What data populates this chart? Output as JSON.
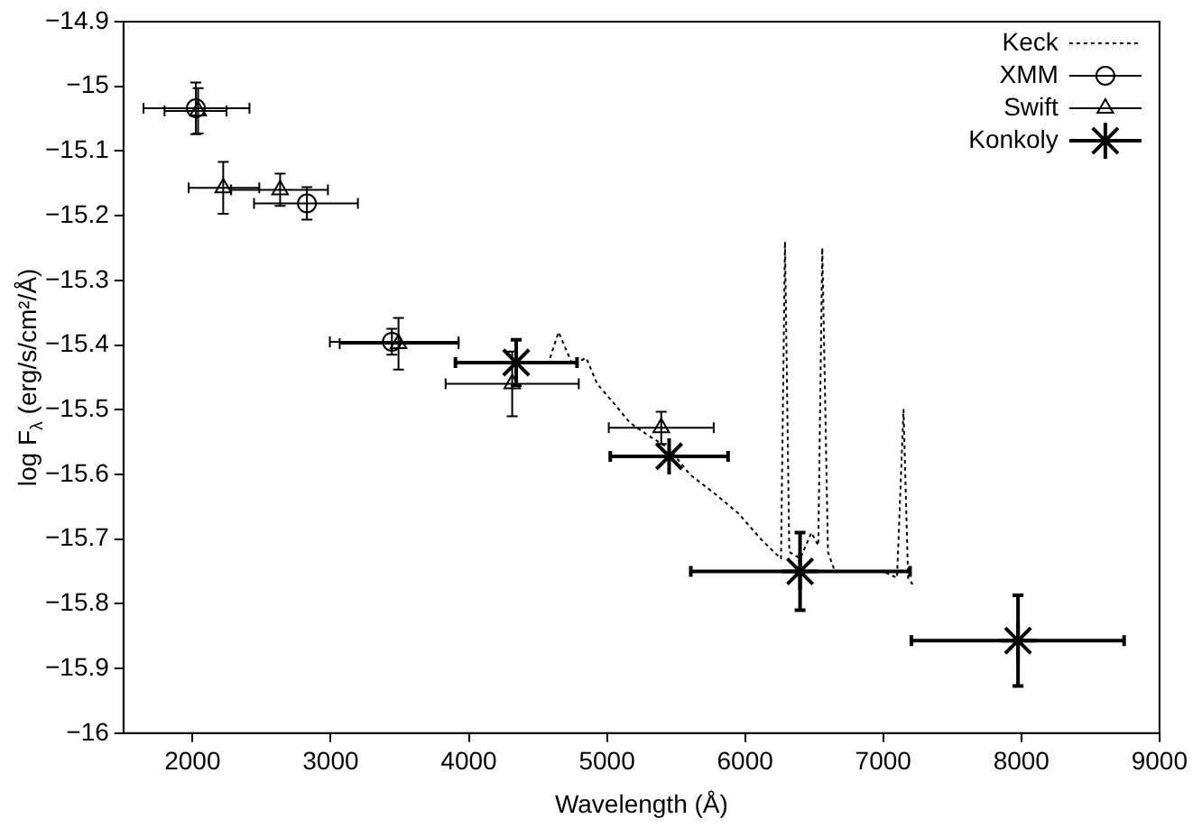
{
  "chart_data": {
    "type": "scatter",
    "xlabel": "Wavelength (Å)",
    "ylabel": "log F$_{λ}$ (erg/s/cm²/Å)",
    "xlim": [
      1500,
      9000
    ],
    "xticks": [
      2000,
      3000,
      4000,
      5000,
      6000,
      7000,
      8000,
      9000
    ],
    "ylim": [
      -16,
      -14.9
    ],
    "yticks": [
      {
        "value": -14.9,
        "label": "−14.9"
      },
      {
        "value": -15,
        "label": "−15"
      },
      {
        "value": -15.1,
        "label": "−15.1"
      },
      {
        "value": -15.2,
        "label": "−15.2"
      },
      {
        "value": -15.3,
        "label": "−15.3"
      },
      {
        "value": -15.4,
        "label": "−15.4"
      },
      {
        "value": -15.5,
        "label": "−15.5"
      },
      {
        "value": -15.6,
        "label": "−15.6"
      },
      {
        "value": -15.7,
        "label": "−15.7"
      },
      {
        "value": -15.8,
        "label": "−15.8"
      },
      {
        "value": -15.9,
        "label": "−15.9"
      },
      {
        "value": -16,
        "label": "−16"
      }
    ],
    "grid": false,
    "legend": "top right",
    "series": [
      {
        "name": "Keck",
        "type": "line",
        "color": "#000000",
        "line_style": "dotted",
        "marker": "none",
        "x": [
          4588,
          4650,
          4750,
          4850,
          4929,
          5050,
          5166,
          5300,
          5450,
          5600,
          5782,
          5950,
          6114,
          6209,
          6260,
          6289,
          6320,
          6400,
          6480,
          6530,
          6559,
          6600,
          6650,
          6800,
          7000,
          7100,
          7147,
          7180,
          7213
        ],
        "values": [
          -15.42,
          -15.38,
          -15.43,
          -15.42,
          -15.46,
          -15.49,
          -15.52,
          -15.54,
          -15.56,
          -15.6,
          -15.63,
          -15.66,
          -15.7,
          -15.72,
          -15.73,
          -15.24,
          -15.72,
          -15.73,
          -15.69,
          -15.71,
          -15.25,
          -15.72,
          -15.75,
          -15.75,
          -15.75,
          -15.76,
          -15.5,
          -15.76,
          -15.77
        ]
      },
      {
        "name": "XMM",
        "color": "#000000",
        "marker": "circle",
        "x": [
          2024,
          2828,
          3443
        ],
        "values": [
          -15.034,
          -15.181,
          -15.395
        ],
        "errors": [
          0.04,
          0.025,
          0.02
        ],
        "xerrors": [
          [
            1645,
            2412
          ],
          [
            2445,
            3197
          ],
          [
            2994,
            3926
          ]
        ]
      },
      {
        "name": "Swift",
        "color": "#000000",
        "marker": "triangle",
        "x": [
          2040,
          2222,
          2634,
          3491,
          4314,
          5393
        ],
        "values": [
          -15.038,
          -15.157,
          -15.16,
          -15.398,
          -15.46,
          -15.528
        ],
        "errors": [
          0.035,
          0.04,
          0.025,
          0.04,
          0.05,
          0.025
        ],
        "xerrors": [
          [
            1797,
            2246
          ],
          [
            1972,
            2483
          ],
          [
            2279,
            2980
          ],
          [
            3065,
            3926
          ],
          [
            3832,
            4796
          ],
          [
            5013,
            5773
          ]
        ]
      },
      {
        "name": "Konkoly",
        "color": "#000000",
        "marker": "cross",
        "x": [
          4343,
          5450,
          6398,
          7976
        ],
        "values": [
          -15.427,
          -15.572,
          -15.75,
          -15.857
        ],
        "errors": [
          0.035,
          null,
          0.06,
          0.07
        ],
        "xerrors": [
          [
            3903,
            4783
          ],
          [
            5024,
            5877
          ],
          [
            5607,
            7194
          ],
          [
            7204,
            8744
          ]
        ]
      }
    ]
  }
}
